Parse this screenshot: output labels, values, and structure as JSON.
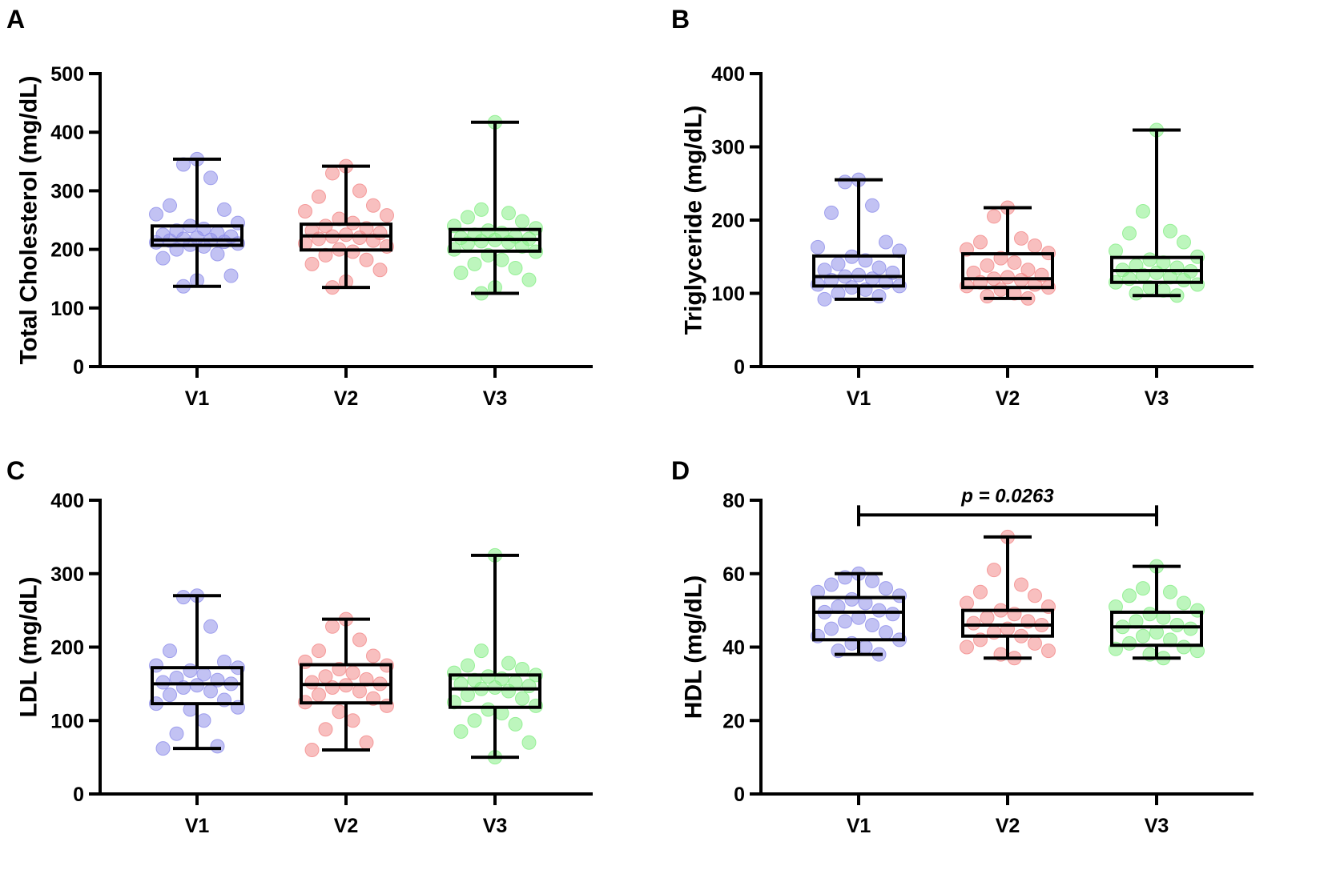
{
  "figure": {
    "colors": {
      "V1": "#8f8fea",
      "V2": "#f28a8a",
      "V3": "#86ee86",
      "ink": "#000000"
    }
  },
  "chart_data": [
    {
      "panel": "A",
      "type": "box",
      "ylabel": "Total Cholesterol (mg/dL)",
      "ylim": [
        0,
        500
      ],
      "yticks": [
        0,
        100,
        200,
        300,
        400,
        500
      ],
      "categories": [
        "V1",
        "V2",
        "V3"
      ],
      "series": [
        {
          "name": "V1",
          "whisker_low": 137,
          "q1": 207,
          "median": 216,
          "q3": 240,
          "whisker_high": 354,
          "points": [
            354,
            345,
            322,
            275,
            268,
            260,
            245,
            240,
            235,
            232,
            228,
            225,
            222,
            220,
            218,
            216,
            215,
            213,
            212,
            210,
            208,
            205,
            200,
            192,
            185,
            155,
            147,
            137
          ]
        },
        {
          "name": "V2",
          "whisker_low": 135,
          "q1": 199,
          "median": 223,
          "q3": 243,
          "whisker_high": 342,
          "points": [
            342,
            330,
            300,
            290,
            275,
            265,
            258,
            252,
            245,
            240,
            236,
            232,
            228,
            225,
            222,
            220,
            218,
            215,
            210,
            205,
            200,
            196,
            190,
            182,
            175,
            165,
            145,
            135
          ]
        },
        {
          "name": "V3",
          "whisker_low": 125,
          "q1": 197,
          "median": 217,
          "q3": 234,
          "whisker_high": 417,
          "points": [
            417,
            268,
            262,
            255,
            248,
            240,
            236,
            232,
            228,
            225,
            222,
            220,
            218,
            216,
            214,
            212,
            210,
            205,
            200,
            196,
            190,
            182,
            175,
            168,
            160,
            148,
            135,
            125
          ]
        }
      ]
    },
    {
      "panel": "B",
      "type": "box",
      "ylabel": "Triglyceride (mg/dL)",
      "ylim": [
        0,
        400
      ],
      "yticks": [
        0,
        100,
        200,
        300,
        400
      ],
      "categories": [
        "V1",
        "V2",
        "V3"
      ],
      "series": [
        {
          "name": "V1",
          "whisker_low": 92,
          "q1": 110,
          "median": 123,
          "q3": 151,
          "whisker_high": 255,
          "points": [
            255,
            252,
            220,
            210,
            170,
            163,
            158,
            150,
            145,
            140,
            135,
            132,
            128,
            125,
            123,
            120,
            118,
            115,
            112,
            110,
            108,
            105,
            100,
            96,
            92
          ]
        },
        {
          "name": "V2",
          "whisker_low": 93,
          "q1": 108,
          "median": 120,
          "q3": 154,
          "whisker_high": 217,
          "points": [
            217,
            205,
            175,
            170,
            165,
            160,
            155,
            148,
            142,
            138,
            132,
            128,
            125,
            122,
            120,
            118,
            115,
            112,
            110,
            108,
            105,
            100,
            96,
            93
          ]
        },
        {
          "name": "V3",
          "whisker_low": 97,
          "q1": 115,
          "median": 131,
          "q3": 149,
          "whisker_high": 323,
          "points": [
            323,
            212,
            185,
            182,
            170,
            158,
            150,
            146,
            142,
            138,
            135,
            132,
            130,
            128,
            125,
            122,
            120,
            118,
            115,
            112,
            108,
            104,
            100,
            97
          ]
        }
      ]
    },
    {
      "panel": "C",
      "type": "box",
      "ylabel": "LDL (mg/dL)",
      "ylim": [
        0,
        400
      ],
      "yticks": [
        0,
        100,
        200,
        300,
        400
      ],
      "categories": [
        "V1",
        "V2",
        "V3"
      ],
      "series": [
        {
          "name": "V1",
          "whisker_low": 62,
          "q1": 123,
          "median": 150,
          "q3": 172,
          "whisker_high": 270,
          "points": [
            270,
            268,
            228,
            195,
            180,
            175,
            172,
            168,
            163,
            158,
            155,
            152,
            150,
            148,
            145,
            140,
            135,
            128,
            123,
            118,
            115,
            100,
            82,
            65,
            62
          ]
        },
        {
          "name": "V2",
          "whisker_low": 60,
          "q1": 124,
          "median": 149,
          "q3": 176,
          "whisker_high": 238,
          "points": [
            238,
            228,
            210,
            195,
            188,
            180,
            175,
            170,
            165,
            160,
            156,
            152,
            150,
            148,
            145,
            140,
            135,
            130,
            125,
            120,
            112,
            100,
            88,
            70,
            60
          ]
        },
        {
          "name": "V3",
          "whisker_low": 50,
          "q1": 118,
          "median": 143,
          "q3": 162,
          "whisker_high": 325,
          "points": [
            325,
            195,
            178,
            175,
            170,
            165,
            162,
            160,
            157,
            155,
            152,
            150,
            147,
            145,
            143,
            140,
            135,
            130,
            125,
            120,
            115,
            110,
            100,
            95,
            85,
            70,
            50
          ]
        }
      ]
    },
    {
      "panel": "D",
      "type": "box",
      "ylabel": "HDL (mg/dL)",
      "ylim": [
        0,
        80
      ],
      "yticks": [
        0,
        20,
        40,
        60,
        80
      ],
      "categories": [
        "V1",
        "V2",
        "V3"
      ],
      "annotation": {
        "text": "p = 0.0263",
        "from": "V1",
        "to": "V3",
        "y": 76
      },
      "series": [
        {
          "name": "V1",
          "whisker_low": 38,
          "q1": 42,
          "median": 49.5,
          "q3": 53.5,
          "whisker_high": 60,
          "points": [
            60,
            59,
            58,
            57,
            56,
            55,
            54,
            53,
            52,
            51,
            50,
            49.5,
            49,
            48,
            47,
            46,
            45,
            44,
            43,
            42,
            41,
            40,
            39,
            38
          ]
        },
        {
          "name": "V2",
          "whisker_low": 37,
          "q1": 43,
          "median": 46,
          "q3": 50,
          "whisker_high": 70,
          "points": [
            70,
            61,
            57,
            55,
            54,
            52,
            51,
            50,
            49,
            48,
            47,
            46.5,
            46,
            45,
            44,
            43,
            42,
            41,
            40,
            39,
            38,
            37
          ]
        },
        {
          "name": "V3",
          "whisker_low": 37,
          "q1": 40.5,
          "median": 45.5,
          "q3": 49.5,
          "whisker_high": 62,
          "points": [
            62,
            56,
            55,
            54,
            52,
            51,
            50,
            49,
            48,
            47,
            46,
            45.5,
            45,
            44,
            43,
            42,
            41,
            40,
            39.5,
            39,
            38,
            37
          ]
        }
      ]
    }
  ]
}
